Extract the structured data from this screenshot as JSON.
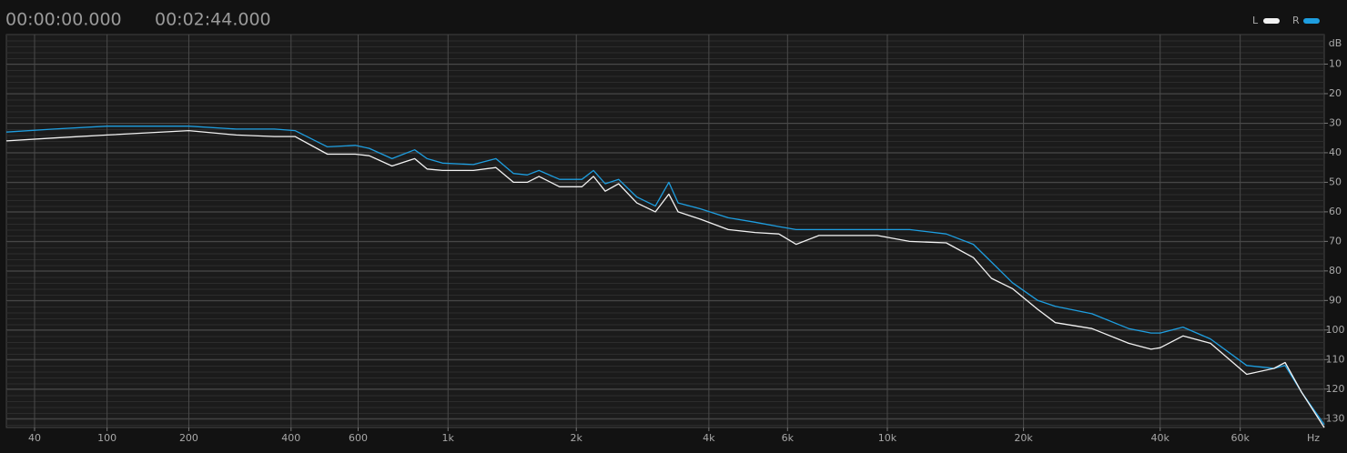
{
  "header": {
    "start_time": "00:00:00.000",
    "end_time": "00:02:44.000"
  },
  "chart_data": {
    "type": "line",
    "x_unit": "Hz",
    "y_unit": "dB",
    "x": [
      22,
      54,
      100,
      200,
      280,
      360,
      410,
      500,
      590,
      640,
      730,
      830,
      890,
      970,
      1150,
      1300,
      1430,
      1540,
      1640,
      1830,
      2060,
      2190,
      2330,
      2500,
      2750,
      3030,
      3250,
      3410,
      3830,
      4420,
      5080,
      5740,
      6270,
      7050,
      9500,
      11200,
      13500,
      15500,
      17000,
      18900,
      21500,
      23500,
      28300,
      34100,
      38200,
      40000,
      44900,
      51600,
      62000,
      71200,
      75300,
      81800,
      91800
    ],
    "series": [
      {
        "name": "L",
        "color": "#f2f2f2",
        "values": [
          36,
          35,
          34,
          32.5,
          34,
          34.5,
          34.5,
          40.5,
          40.5,
          41,
          44.5,
          42,
          45.5,
          46,
          46,
          45,
          50,
          50,
          48,
          51.5,
          51.5,
          48,
          53,
          50.5,
          57,
          60,
          54,
          60,
          62.5,
          66,
          67,
          67.5,
          71,
          68,
          68,
          70,
          70.5,
          75.5,
          82.5,
          86,
          93,
          97.5,
          99.5,
          104.5,
          106.5,
          106,
          102,
          104.5,
          115,
          113,
          111,
          121,
          133
        ]
      },
      {
        "name": "R",
        "color": "#1e9ee0",
        "values": [
          33,
          32,
          31,
          31,
          32,
          32,
          32.5,
          38,
          37.5,
          38.5,
          42,
          39,
          42,
          43.5,
          44,
          42,
          47,
          47.5,
          46,
          49,
          49,
          46,
          50.5,
          49,
          55,
          58,
          50,
          57,
          59,
          62,
          63.5,
          65,
          66,
          66,
          66,
          66,
          67.5,
          71,
          77,
          84,
          90,
          92,
          94.5,
          99.5,
          101,
          101,
          99,
          103,
          112,
          113,
          112,
          121,
          132
        ]
      }
    ],
    "xlim": [
      22,
      91800
    ],
    "xscale": "log",
    "xticks": [
      40,
      100,
      200,
      400,
      600,
      {
        "value": 1000,
        "label": "1k"
      },
      {
        "value": 2000,
        "label": "2k"
      },
      {
        "value": 4000,
        "label": "4k"
      },
      {
        "value": 6000,
        "label": "6k"
      },
      {
        "value": 10000,
        "label": "10k"
      },
      {
        "value": 20000,
        "label": "20k"
      },
      {
        "value": 40000,
        "label": "40k"
      },
      {
        "value": 60000,
        "label": "60k"
      }
    ],
    "ylim": [
      0,
      133
    ],
    "y_inverted": true,
    "yticks": [
      10,
      20,
      30,
      40,
      50,
      60,
      70,
      80,
      90,
      100,
      110,
      120,
      130
    ],
    "grid": true
  }
}
